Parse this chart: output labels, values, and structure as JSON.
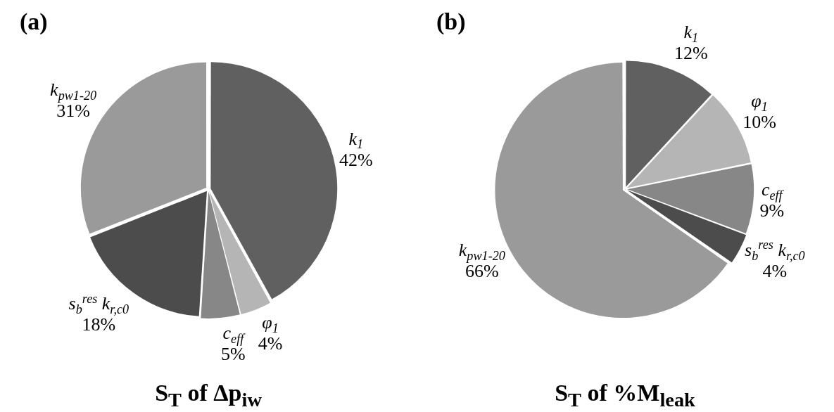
{
  "chart_data": [
    {
      "type": "pie",
      "title": "S$_{T}$ of Δp$_{iw}$",
      "annotations": [
        "(a)"
      ],
      "legend": false,
      "categories": [
        "k$_{1}$",
        "φ$_{1}$",
        "c$_{eff}$",
        "s$_{b}$$^{res}$ k$_{r,c0}$",
        "k$_{pw1-20}$"
      ],
      "values": [
        42,
        4,
        5,
        18,
        31
      ],
      "value_labels": [
        "42%",
        "4%",
        "5%",
        "18%",
        "31%"
      ],
      "colors": [
        "#606060",
        "#b5b5b5",
        "#878787",
        "#4c4c4c",
        "#9a9a9a"
      ]
    },
    {
      "type": "pie",
      "title": "S$_{T}$ of %M$_{leak}$",
      "annotations": [
        "(b)"
      ],
      "legend": false,
      "categories": [
        "k$_{1}$",
        "φ$_{1}$",
        "c$_{eff}$",
        "s$_{b}$$^{res}$ k$_{r,c0}$",
        "k$_{pw1-20}$"
      ],
      "values": [
        12,
        10,
        9,
        4,
        66
      ],
      "value_labels": [
        "12%",
        "10%",
        "9%",
        "4%",
        "66%"
      ],
      "colors": [
        "#606060",
        "#b5b5b5",
        "#878787",
        "#4c4c4c",
        "#9a9a9a"
      ]
    }
  ]
}
